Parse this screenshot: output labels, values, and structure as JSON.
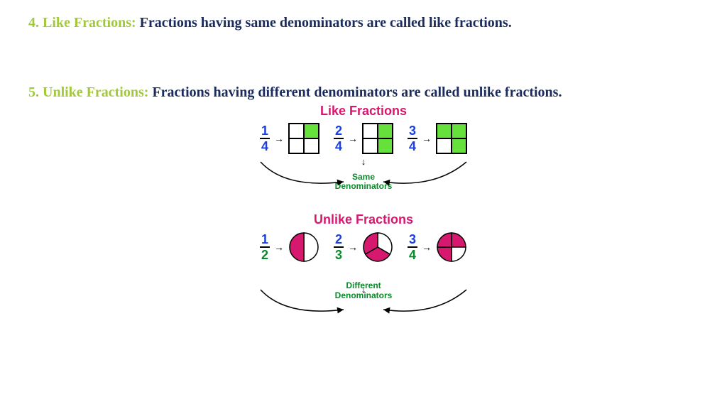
{
  "def1": {
    "num": "4.",
    "term": "Like Fractions:",
    "text": "Fractions having same denominators are called like fractions."
  },
  "def2": {
    "num": "5.",
    "term": "Unlike Fractions:",
    "text": "Fractions having different denominators are called unlike fractions."
  },
  "like": {
    "title": "Like Fractions",
    "fracs": [
      {
        "n": "1",
        "d": "4",
        "cells": [
          0,
          1,
          0,
          0
        ]
      },
      {
        "n": "2",
        "d": "4",
        "cells": [
          0,
          1,
          0,
          1
        ]
      },
      {
        "n": "3",
        "d": "4",
        "cells": [
          1,
          1,
          0,
          1
        ]
      }
    ],
    "label": "Same\nDenominators",
    "num_color": "#1a3ee0",
    "den_color": "#1a3ee0",
    "fill_color": "#66e03a"
  },
  "unlike": {
    "title": "Unlike Fractions",
    "fracs": [
      {
        "n": "1",
        "d": "2",
        "slices": 2,
        "filled": [
          1
        ]
      },
      {
        "n": "2",
        "d": "3",
        "slices": 3,
        "filled": [
          1,
          2
        ]
      },
      {
        "n": "3",
        "d": "4",
        "slices": 4,
        "filled": [
          0,
          2,
          3
        ]
      }
    ],
    "label": "Different\nDenominators",
    "num_color": "#1a3ee0",
    "den_color": "#0a8a2a",
    "pie_fill": "#d6186e",
    "pie_stroke": "#000000"
  },
  "colors": {
    "accent_green": "#a2c83b",
    "dark_navy": "#1a2b5c",
    "magenta": "#d6186e",
    "label_green": "#0a8a2a"
  }
}
